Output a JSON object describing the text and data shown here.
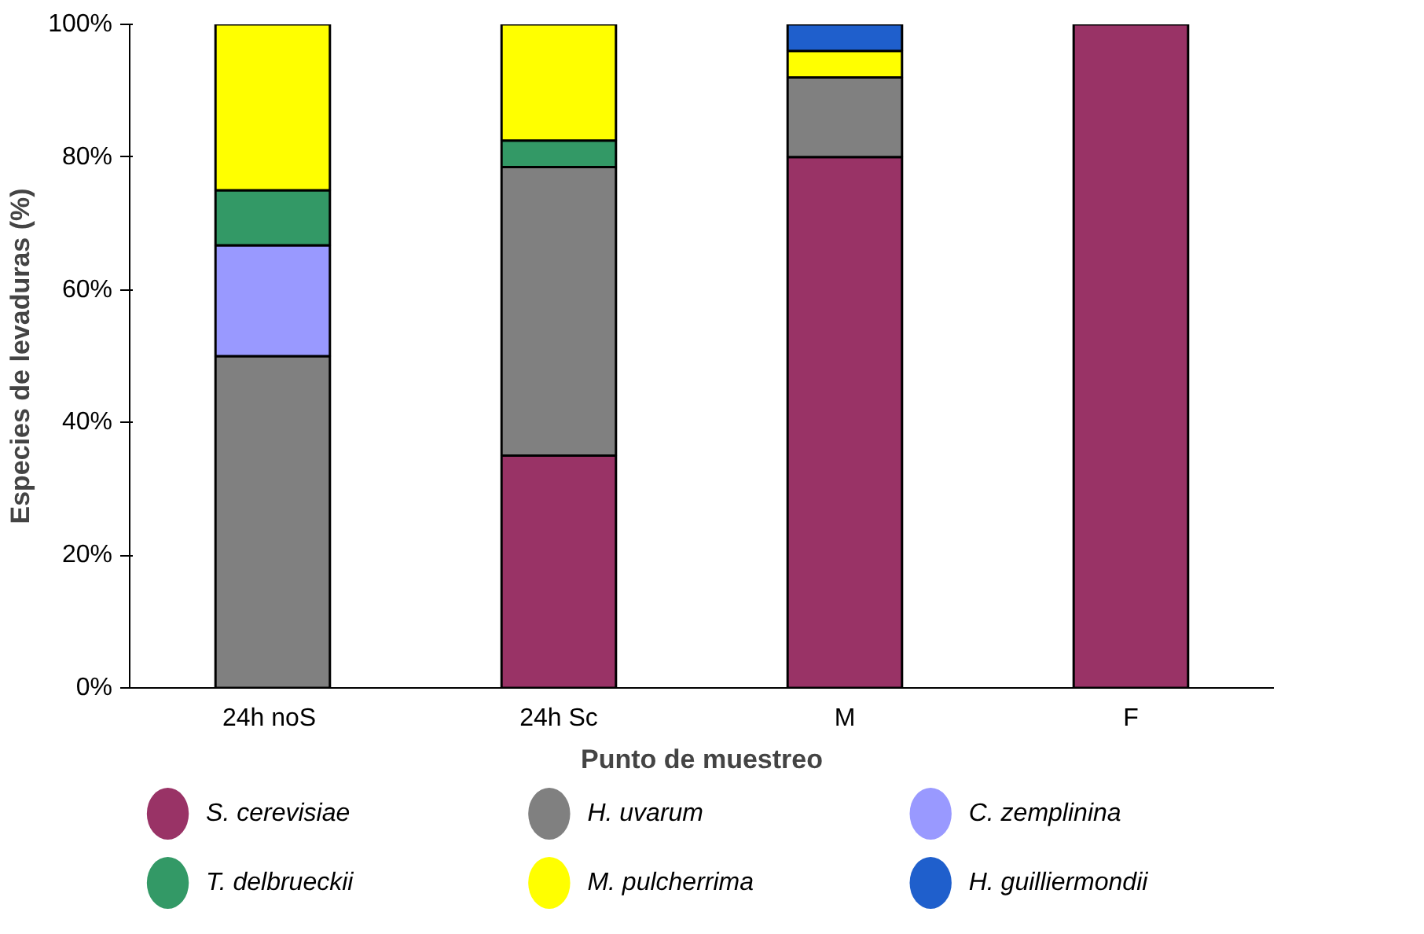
{
  "chart_data": {
    "type": "bar",
    "stacked": true,
    "xlabel": "Punto de muestreo",
    "ylabel": "Especies de levaduras (%)",
    "categories": [
      "24h  noS",
      "24h Sc",
      "M",
      "F"
    ],
    "ylim": [
      0,
      100
    ],
    "yticks": [
      {
        "value": 0,
        "label": "0%"
      },
      {
        "value": 20,
        "label": "20%"
      },
      {
        "value": 40,
        "label": "40%"
      },
      {
        "value": 60,
        "label": "60%"
      },
      {
        "value": 80,
        "label": "80%"
      },
      {
        "value": 100,
        "label": "100%"
      }
    ],
    "legend": "bottom",
    "series": [
      {
        "name": "S. cerevisiae",
        "color": "#993366",
        "values": [
          null,
          35,
          80,
          100
        ]
      },
      {
        "name": "H. uvarum",
        "color": "#808080",
        "values": [
          50,
          43.5,
          12,
          null
        ]
      },
      {
        "name": "C. zemplinina",
        "color": "#9999ff",
        "values": [
          16.7,
          null,
          null,
          null
        ]
      },
      {
        "name": "T. delbrueckii",
        "color": "#339966",
        "values": [
          8.3,
          4,
          null,
          null
        ]
      },
      {
        "name": "M. pulcherrima",
        "color": "#ffff00",
        "values": [
          25,
          17.5,
          4,
          null
        ]
      },
      {
        "name": "H. guilliermondii",
        "color": "#1f5fcc",
        "values": [
          null,
          null,
          4,
          null
        ]
      }
    ]
  }
}
